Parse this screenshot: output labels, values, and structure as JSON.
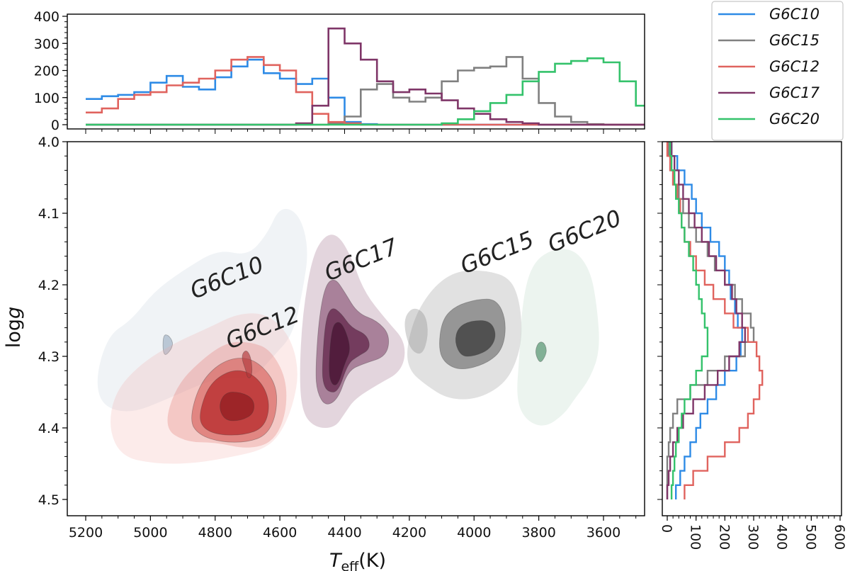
{
  "chart_data": [
    {
      "type": "area",
      "panel": "main",
      "xlabel": "T_eff(K)",
      "ylabel": "log g",
      "xlim": [
        5200,
        3500
      ],
      "ylim": [
        4.5,
        4.0
      ],
      "xticks": [
        "5200",
        "5000",
        "4800",
        "4600",
        "4400",
        "4200",
        "4000",
        "3800",
        "3600"
      ],
      "yticks": [
        "4.0",
        "4.1",
        "4.2",
        "4.3",
        "4.4",
        "4.5"
      ],
      "clusters": [
        {
          "name": "G6C10",
          "color": "#9db0c5",
          "center_teff": 4700,
          "center_logg": 4.27,
          "label": "G6C10"
        },
        {
          "name": "G6C12",
          "color": "#c0332e",
          "center_teff": 4700,
          "center_logg": 4.37,
          "label": "G6C12"
        },
        {
          "name": "G6C17",
          "color": "#5e1f44",
          "center_teff": 4430,
          "center_logg": 4.29,
          "label": "G6C17"
        },
        {
          "name": "G6C15",
          "color": "#3c3c3c",
          "center_teff": 4000,
          "center_logg": 4.27,
          "label": "G6C15"
        },
        {
          "name": "G6C20",
          "color": "#a7ccb5",
          "center_teff": 3790,
          "center_logg": 4.3,
          "label": "G6C20"
        }
      ]
    },
    {
      "type": "line",
      "panel": "top-histogram",
      "ylim": [
        0,
        400
      ],
      "yticks": [
        "0",
        "100",
        "200",
        "300",
        "400"
      ],
      "x": [
        5200,
        5150,
        5100,
        5050,
        5000,
        4950,
        4900,
        4850,
        4800,
        4750,
        4700,
        4650,
        4600,
        4550,
        4500,
        4450,
        4400,
        4350,
        4300,
        4250,
        4200,
        4150,
        4100,
        4050,
        4000,
        3950,
        3900,
        3850,
        3800,
        3750,
        3700,
        3650,
        3600,
        3550,
        3500
      ],
      "series": [
        {
          "name": "G6C10",
          "color": "#2e8be6",
          "values": [
            95,
            105,
            110,
            120,
            155,
            180,
            140,
            130,
            175,
            215,
            240,
            190,
            170,
            150,
            170,
            100,
            10,
            2,
            0,
            0,
            0,
            0,
            0,
            0,
            0,
            0,
            0,
            0,
            0,
            0,
            0,
            0,
            0,
            0,
            0
          ]
        },
        {
          "name": "G6C15",
          "color": "#808080",
          "values": [
            0,
            0,
            0,
            0,
            0,
            0,
            0,
            0,
            0,
            0,
            0,
            0,
            0,
            0,
            0,
            5,
            30,
            130,
            150,
            100,
            85,
            100,
            160,
            200,
            210,
            215,
            250,
            170,
            80,
            30,
            10,
            2,
            0,
            0,
            0
          ]
        },
        {
          "name": "G6C12",
          "color": "#e0635e",
          "values": [
            45,
            60,
            95,
            110,
            120,
            145,
            155,
            170,
            200,
            240,
            250,
            220,
            200,
            120,
            40,
            10,
            5,
            0,
            0,
            0,
            0,
            0,
            0,
            0,
            0,
            0,
            0,
            0,
            0,
            0,
            0,
            0,
            0,
            0,
            0
          ]
        },
        {
          "name": "G6C17",
          "color": "#7f3668",
          "values": [
            0,
            0,
            0,
            0,
            0,
            0,
            0,
            0,
            0,
            0,
            0,
            0,
            0,
            5,
            70,
            355,
            300,
            240,
            160,
            120,
            130,
            115,
            90,
            60,
            40,
            20,
            10,
            5,
            0,
            0,
            0,
            0,
            0,
            0,
            0
          ]
        },
        {
          "name": "G6C20",
          "color": "#34c26b",
          "values": [
            0,
            0,
            0,
            0,
            0,
            0,
            0,
            0,
            0,
            0,
            0,
            0,
            0,
            0,
            0,
            0,
            0,
            0,
            0,
            0,
            0,
            0,
            5,
            20,
            50,
            80,
            110,
            160,
            195,
            225,
            235,
            245,
            230,
            160,
            70
          ]
        }
      ]
    },
    {
      "type": "line",
      "panel": "right-histogram",
      "xlim": [
        0,
        600
      ],
      "xticks": [
        "0",
        "100",
        "200",
        "300",
        "400",
        "500",
        "600"
      ],
      "y": [
        4.0,
        4.02,
        4.04,
        4.06,
        4.08,
        4.1,
        4.12,
        4.14,
        4.16,
        4.18,
        4.2,
        4.22,
        4.24,
        4.26,
        4.28,
        4.3,
        4.32,
        4.34,
        4.36,
        4.38,
        4.4,
        4.42,
        4.44,
        4.46,
        4.48
      ],
      "series": [
        {
          "name": "G6C10",
          "color": "#2e8be6",
          "values": [
            15,
            35,
            60,
            85,
            100,
            120,
            150,
            180,
            200,
            215,
            220,
            235,
            245,
            260,
            255,
            240,
            200,
            170,
            140,
            115,
            100,
            80,
            60,
            45,
            30
          ]
        },
        {
          "name": "G6C15",
          "color": "#808080",
          "values": [
            5,
            10,
            20,
            40,
            55,
            75,
            100,
            140,
            165,
            200,
            235,
            260,
            290,
            300,
            270,
            200,
            140,
            80,
            35,
            20,
            10,
            5,
            0,
            0,
            0
          ]
        },
        {
          "name": "G6C12",
          "color": "#e0635e",
          "values": [
            0,
            10,
            20,
            35,
            45,
            50,
            60,
            80,
            100,
            130,
            160,
            200,
            230,
            280,
            310,
            320,
            330,
            320,
            300,
            280,
            250,
            200,
            140,
            90,
            60
          ]
        },
        {
          "name": "G6C17",
          "color": "#7f3668",
          "values": [
            15,
            25,
            40,
            55,
            75,
            95,
            120,
            145,
            170,
            200,
            225,
            240,
            260,
            270,
            250,
            215,
            175,
            130,
            90,
            55,
            35,
            20,
            10,
            5,
            0
          ]
        },
        {
          "name": "G6C20",
          "color": "#34c26b",
          "values": [
            10,
            15,
            25,
            30,
            40,
            50,
            60,
            75,
            90,
            100,
            110,
            120,
            130,
            140,
            140,
            120,
            100,
            80,
            60,
            50,
            40,
            30,
            25,
            20,
            15
          ]
        }
      ]
    }
  ],
  "legend": {
    "placement": "top-right",
    "entries": [
      {
        "label": "G6C10",
        "color": "#2e8be6"
      },
      {
        "label": "G6C15",
        "color": "#808080"
      },
      {
        "label": "G6C12",
        "color": "#e0635e"
      },
      {
        "label": "G6C17",
        "color": "#7f3668"
      },
      {
        "label": "G6C20",
        "color": "#34c26b"
      }
    ]
  }
}
